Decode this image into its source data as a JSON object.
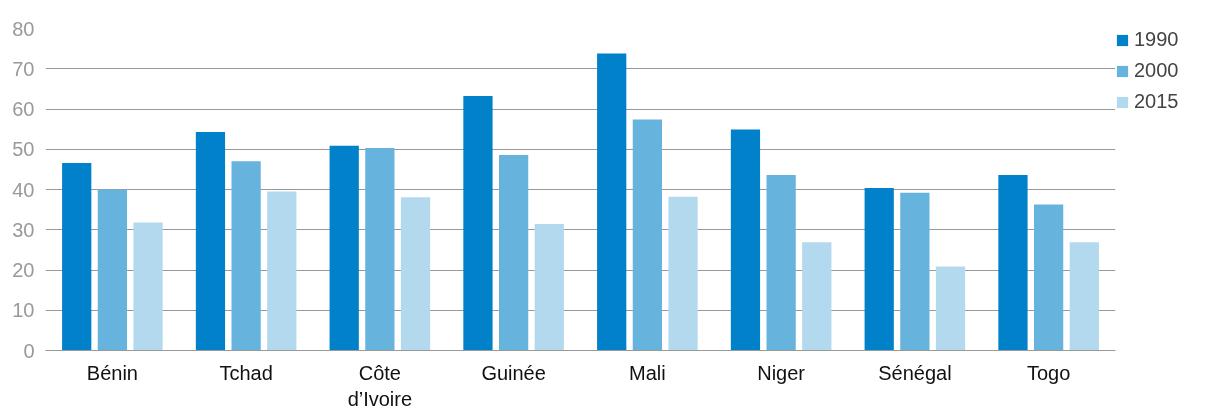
{
  "chart_data": {
    "type": "bar",
    "categories": [
      "Bénin",
      "Tchad",
      "Côte d’Ivoire",
      "Guinée",
      "Mali",
      "Niger",
      "Sénégal",
      "Togo"
    ],
    "series": [
      {
        "name": "1990",
        "color": "#0081c9",
        "values": [
          46.6,
          54.3,
          50.9,
          63.2,
          73.8,
          54.9,
          40.4,
          43.6
        ]
      },
      {
        "name": "2000",
        "color": "#66b3de",
        "values": [
          40.0,
          47.0,
          50.3,
          48.6,
          57.4,
          43.6,
          39.2,
          36.3
        ]
      },
      {
        "name": "2015",
        "color": "#b3d9ef",
        "values": [
          31.8,
          39.5,
          38.1,
          31.4,
          38.2,
          26.9,
          20.9,
          26.9
        ]
      }
    ],
    "ylim": [
      0,
      80
    ],
    "yticks": [
      0,
      10,
      20,
      30,
      40,
      50,
      60,
      70,
      80
    ],
    "grid": "y",
    "legend": "top right"
  }
}
